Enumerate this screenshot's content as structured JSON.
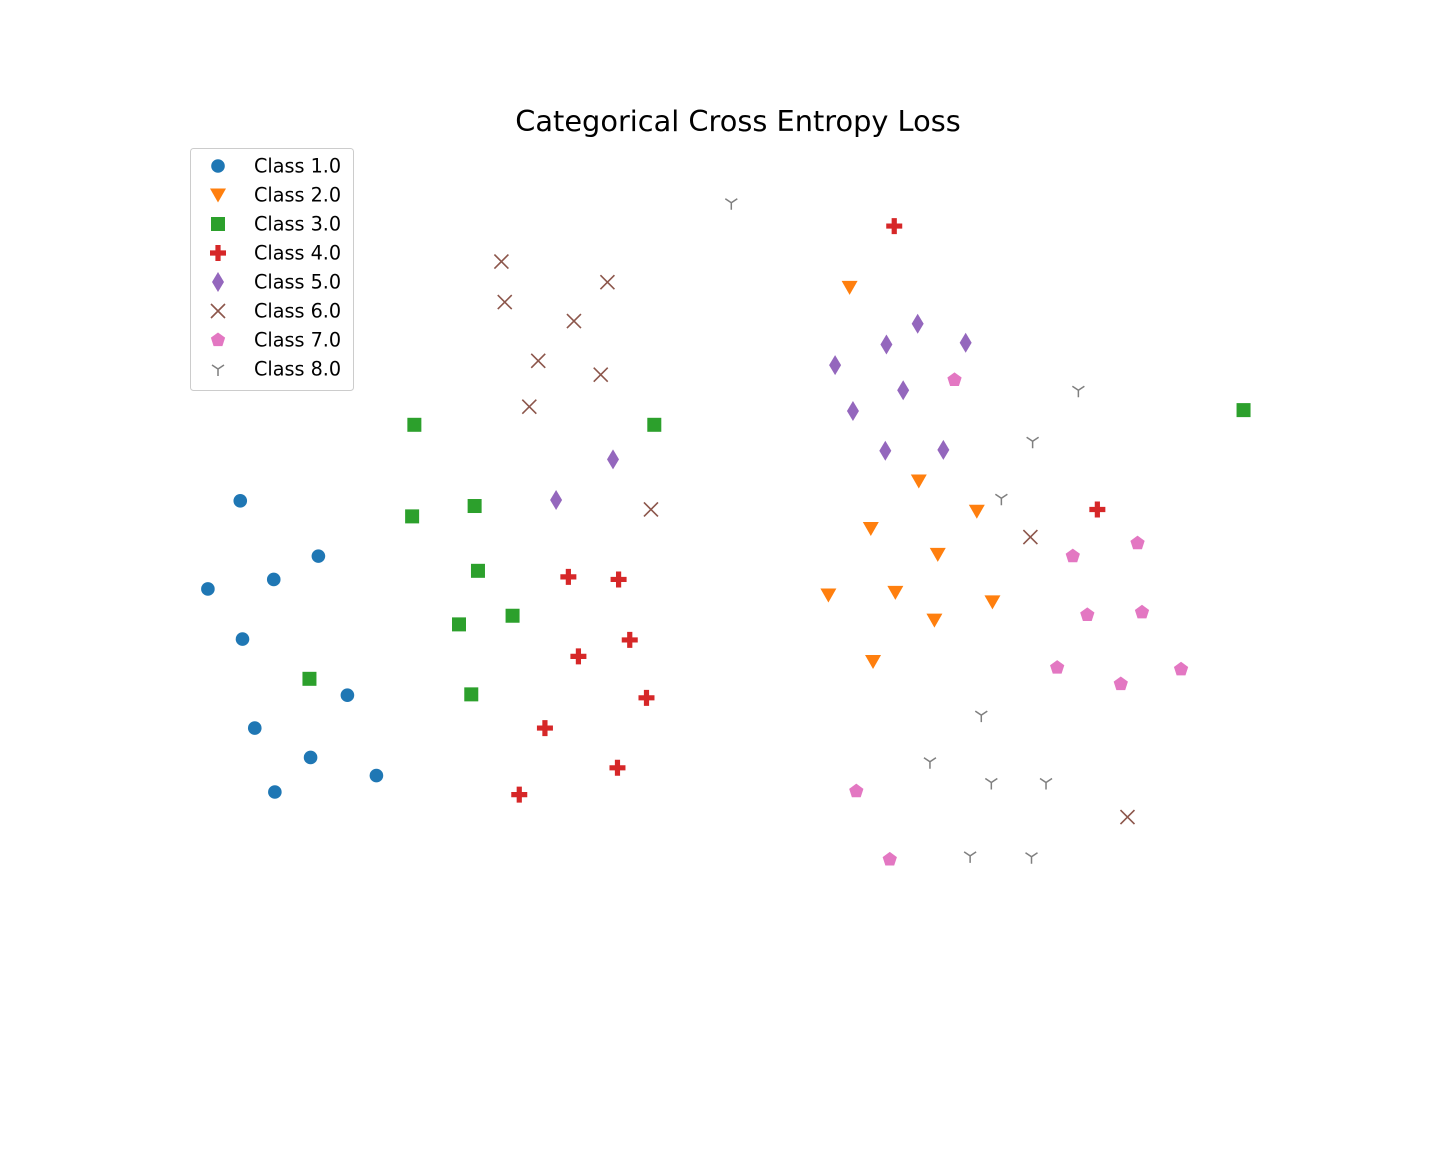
{
  "chart_data": {
    "type": "scatter",
    "title": "Categorical Cross Entropy Loss",
    "xlabel": "",
    "ylabel": "",
    "axes_visible": false,
    "grid": false,
    "legend_position": "upper-left",
    "xlim": [
      0,
      100
    ],
    "ylim": [
      0,
      100
    ],
    "series": [
      {
        "name": "Class 1.0",
        "marker": "circle",
        "color": "#1f77b4",
        "points": [
          [
            5.4,
            58.7
          ],
          [
            2.5,
            48.5
          ],
          [
            8.4,
            49.6
          ],
          [
            12.4,
            52.3
          ],
          [
            5.6,
            42.7
          ],
          [
            15.0,
            36.2
          ],
          [
            6.7,
            32.4
          ],
          [
            11.7,
            29.0
          ],
          [
            8.5,
            25.0
          ],
          [
            17.6,
            26.9
          ]
        ]
      },
      {
        "name": "Class 2.0",
        "marker": "triangle-down",
        "color": "#ff7f0e",
        "points": [
          [
            60.0,
            83.4
          ],
          [
            66.2,
            61.0
          ],
          [
            61.9,
            55.5
          ],
          [
            71.4,
            57.5
          ],
          [
            67.9,
            52.5
          ],
          [
            58.1,
            47.8
          ],
          [
            64.1,
            48.1
          ],
          [
            67.6,
            44.9
          ],
          [
            72.8,
            47.0
          ],
          [
            62.1,
            40.1
          ]
        ]
      },
      {
        "name": "Class 3.0",
        "marker": "square",
        "color": "#2ca02c",
        "points": [
          [
            21.0,
            67.5
          ],
          [
            20.8,
            56.9
          ],
          [
            26.4,
            58.1
          ],
          [
            26.7,
            50.6
          ],
          [
            25.0,
            44.4
          ],
          [
            29.8,
            45.4
          ],
          [
            11.6,
            38.1
          ],
          [
            26.1,
            36.3
          ],
          [
            42.5,
            67.5
          ],
          [
            95.3,
            69.2
          ]
        ]
      },
      {
        "name": "Class 4.0",
        "marker": "plus",
        "color": "#d62728",
        "points": [
          [
            64.0,
            90.5
          ],
          [
            82.2,
            57.7
          ],
          [
            34.8,
            49.9
          ],
          [
            39.3,
            49.6
          ],
          [
            35.7,
            40.7
          ],
          [
            40.3,
            42.6
          ],
          [
            41.8,
            35.9
          ],
          [
            32.7,
            32.4
          ],
          [
            39.2,
            27.8
          ],
          [
            30.4,
            24.7
          ]
        ]
      },
      {
        "name": "Class 5.0",
        "marker": "diamond",
        "color": "#9467bd",
        "points": [
          [
            66.1,
            79.2
          ],
          [
            63.3,
            76.8
          ],
          [
            70.4,
            77.0
          ],
          [
            58.7,
            74.4
          ],
          [
            64.8,
            71.5
          ],
          [
            60.3,
            69.1
          ],
          [
            63.2,
            64.5
          ],
          [
            68.4,
            64.6
          ],
          [
            38.8,
            63.5
          ],
          [
            33.7,
            58.8
          ]
        ]
      },
      {
        "name": "Class 6.0",
        "marker": "x",
        "color": "#8c564b",
        "points": [
          [
            28.8,
            86.4
          ],
          [
            38.3,
            84.0
          ],
          [
            29.1,
            81.7
          ],
          [
            35.3,
            79.5
          ],
          [
            32.1,
            74.9
          ],
          [
            37.7,
            73.3
          ],
          [
            31.3,
            69.6
          ],
          [
            42.2,
            57.7
          ],
          [
            76.2,
            54.5
          ],
          [
            84.9,
            22.1
          ]
        ]
      },
      {
        "name": "Class 7.0",
        "marker": "pentagon",
        "color": "#e377c2",
        "points": [
          [
            69.4,
            72.7
          ],
          [
            80.0,
            52.3
          ],
          [
            85.8,
            53.8
          ],
          [
            81.3,
            45.5
          ],
          [
            86.2,
            45.8
          ],
          [
            78.6,
            39.4
          ],
          [
            84.3,
            37.5
          ],
          [
            89.7,
            39.2
          ],
          [
            60.6,
            25.1
          ],
          [
            63.6,
            17.2
          ]
        ]
      },
      {
        "name": "Class 8.0",
        "marker": "tri-down",
        "color": "#7f7f7f",
        "points": [
          [
            49.4,
            93.2
          ],
          [
            80.5,
            71.5
          ],
          [
            76.4,
            65.6
          ],
          [
            73.6,
            59.0
          ],
          [
            71.8,
            33.9
          ],
          [
            67.2,
            28.5
          ],
          [
            72.7,
            26.1
          ],
          [
            77.6,
            26.1
          ],
          [
            70.8,
            17.6
          ],
          [
            76.3,
            17.5
          ]
        ]
      }
    ]
  }
}
